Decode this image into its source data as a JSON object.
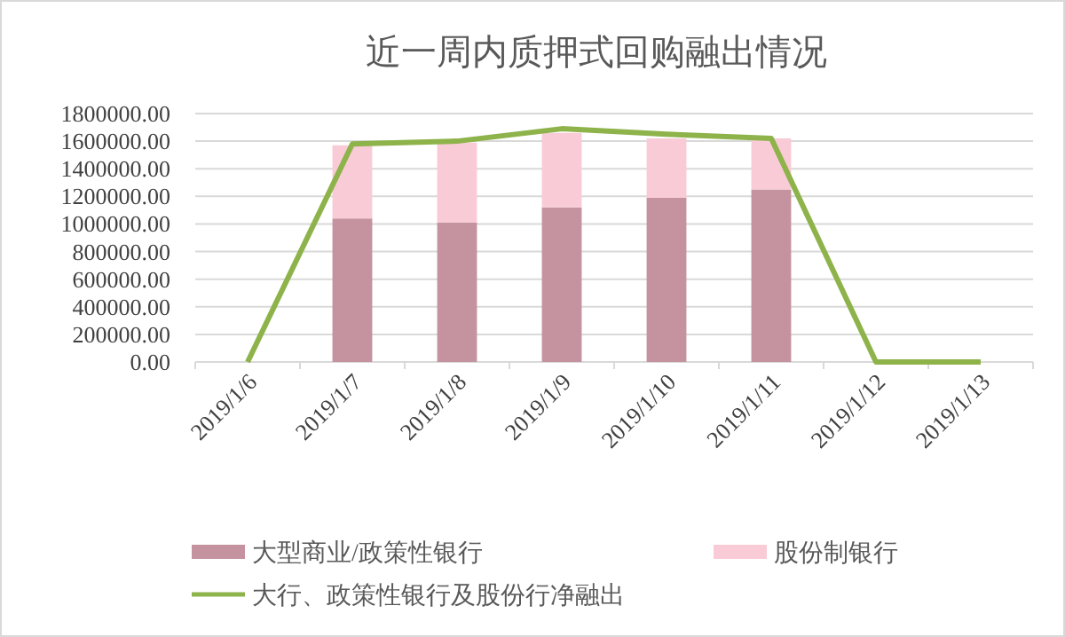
{
  "chart_data": {
    "type": "bar",
    "title": "近一周内质押式回购融出情况",
    "stacked": true,
    "categories": [
      "2019/1/6",
      "2019/1/7",
      "2019/1/8",
      "2019/1/9",
      "2019/1/10",
      "2019/1/11",
      "2019/1/12",
      "2019/1/13"
    ],
    "series": [
      {
        "name": "大型商业/政策性银行",
        "color": "#c4939f",
        "values": [
          null,
          1040000,
          1010000,
          1120000,
          1190000,
          1250000,
          null,
          null
        ]
      },
      {
        "name": "股份制银行",
        "color": "#f9cbd6",
        "values": [
          null,
          530000,
          580000,
          540000,
          430000,
          370000,
          null,
          null
        ]
      },
      {
        "name": "大行、政策性银行及股份行净融出",
        "type": "line",
        "color": "#8db34a",
        "values": [
          0,
          1580000,
          1600000,
          1690000,
          1650000,
          1620000,
          0,
          0
        ]
      }
    ],
    "ylim": [
      0,
      1800000
    ],
    "yticks": [
      {
        "value": 0,
        "label": "0.00"
      },
      {
        "value": 200000,
        "label": "200000.00"
      },
      {
        "value": 400000,
        "label": "400000.00"
      },
      {
        "value": 600000,
        "label": "600000.00"
      },
      {
        "value": 800000,
        "label": "800000.00"
      },
      {
        "value": 1000000,
        "label": "1000000.00"
      },
      {
        "value": 1200000,
        "label": "1200000.00"
      },
      {
        "value": 1400000,
        "label": "1400000.00"
      },
      {
        "value": 1600000,
        "label": "1600000.00"
      },
      {
        "value": 1800000,
        "label": "1800000.00"
      }
    ],
    "grid": "y",
    "legend": "bottom"
  }
}
